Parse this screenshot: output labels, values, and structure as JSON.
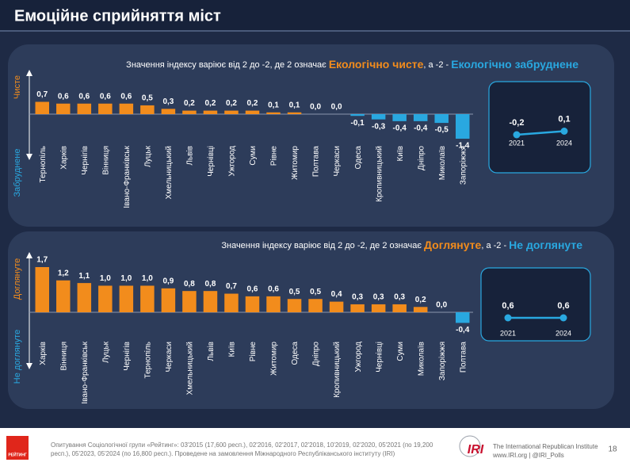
{
  "header": {
    "title": "Емоційне сприйняття міст"
  },
  "chart_data": [
    {
      "type": "bar",
      "subtitle": [
        "Значення індексу варіює від 2 до -2, де 2 означає ",
        "Екологічно чисте",
        ", а -2 - ",
        "Екологічно забруднене"
      ],
      "axis_labels": {
        "top": "Чисте",
        "bottom": "Забруднене"
      },
      "categories": [
        "Тернопіль",
        "Харків",
        "Чернігів",
        "Вінниця",
        "Івано-Франківськ",
        "Луцьк",
        "Хмельницький",
        "Львів",
        "Чернівці",
        "Ужгород",
        "Суми",
        "Рівне",
        "Житомир",
        "Полтава",
        "Черкаси",
        "Одеса",
        "Кропивницький",
        "Київ",
        "Дніпро",
        "Миколаїв",
        "Запоріжжя"
      ],
      "values": [
        0.7,
        0.6,
        0.6,
        0.6,
        0.6,
        0.5,
        0.3,
        0.2,
        0.2,
        0.2,
        0.2,
        0.1,
        0.1,
        0.0,
        0.0,
        -0.1,
        -0.3,
        -0.4,
        -0.4,
        -0.5,
        -1.4
      ],
      "value_labels": [
        "0,7",
        "0,6",
        "0,6",
        "0,6",
        "0,6",
        "0,5",
        "0,3",
        "0,2",
        "0,2",
        "0,2",
        "0,2",
        "0,1",
        "0,1",
        "0,0",
        "0,0",
        "-0,1",
        "-0,3",
        "-0,4",
        "-0,4",
        "-0,5",
        "-1,4"
      ],
      "colors": {
        "positive": "#f28c1c",
        "negative": "#29a8e0"
      }
    },
    {
      "type": "line",
      "x": [
        "2021",
        "2024"
      ],
      "values": [
        -0.2,
        0.1
      ],
      "value_labels": [
        "-0,2",
        "0,1"
      ],
      "color": "#29a8e0"
    },
    {
      "type": "bar",
      "subtitle": [
        "Значення індексу варіює від 2 до -2, де 2 означає ",
        "Доглянуте",
        ", а -2 - ",
        "Не доглянуте"
      ],
      "axis_labels": {
        "top": "Доглянуте",
        "bottom": "Не доглянуте"
      },
      "categories": [
        "Харків",
        "Вінниця",
        "Івано-Франківськ",
        "Луцьк",
        "Чернігів",
        "Тернопіль",
        "Черкаси",
        "Хмельницький",
        "Львів",
        "Київ",
        "Рівне",
        "Житомир",
        "Одеса",
        "Дніпро",
        "Кропивницький",
        "Ужгород",
        "Чернівці",
        "Суми",
        "Миколаїв",
        "Запоріжжя",
        "Полтава"
      ],
      "values": [
        1.7,
        1.2,
        1.1,
        1.0,
        1.0,
        1.0,
        0.9,
        0.8,
        0.8,
        0.7,
        0.6,
        0.6,
        0.5,
        0.5,
        0.4,
        0.3,
        0.3,
        0.3,
        0.2,
        0.0,
        -0.4
      ],
      "value_labels": [
        "1,7",
        "1,2",
        "1,1",
        "1,0",
        "1,0",
        "1,0",
        "0,9",
        "0,8",
        "0,8",
        "0,7",
        "0,6",
        "0,6",
        "0,5",
        "0,5",
        "0,4",
        "0,3",
        "0,3",
        "0,3",
        "0,2",
        "0,0",
        "-0,4"
      ],
      "colors": {
        "positive": "#f28c1c",
        "negative": "#29a8e0"
      }
    },
    {
      "type": "line",
      "x": [
        "2021",
        "2024"
      ],
      "values": [
        0.6,
        0.6
      ],
      "value_labels": [
        "0,6",
        "0,6"
      ],
      "color": "#29a8e0"
    }
  ],
  "footer": {
    "logo": "РЕЙТИНГ",
    "source": "Опитування Соціологічної групи «Рейтинг»: 03'2015 (17,600 респ.), 02'2016, 02'2017, 02'2018, 10'2019, 02'2020, 05'2021 (по 19,200 респ.), 05'2023, 05'2024 (по 16,800 респ.). Проведене на замовлення Міжнародного Республіканського інституту (IRI)",
    "iri_logo": "IRI",
    "iri_name": "The International Republican Institute",
    "iri_links": "www.IRI.org | @IRI_Polls",
    "page": "18"
  }
}
